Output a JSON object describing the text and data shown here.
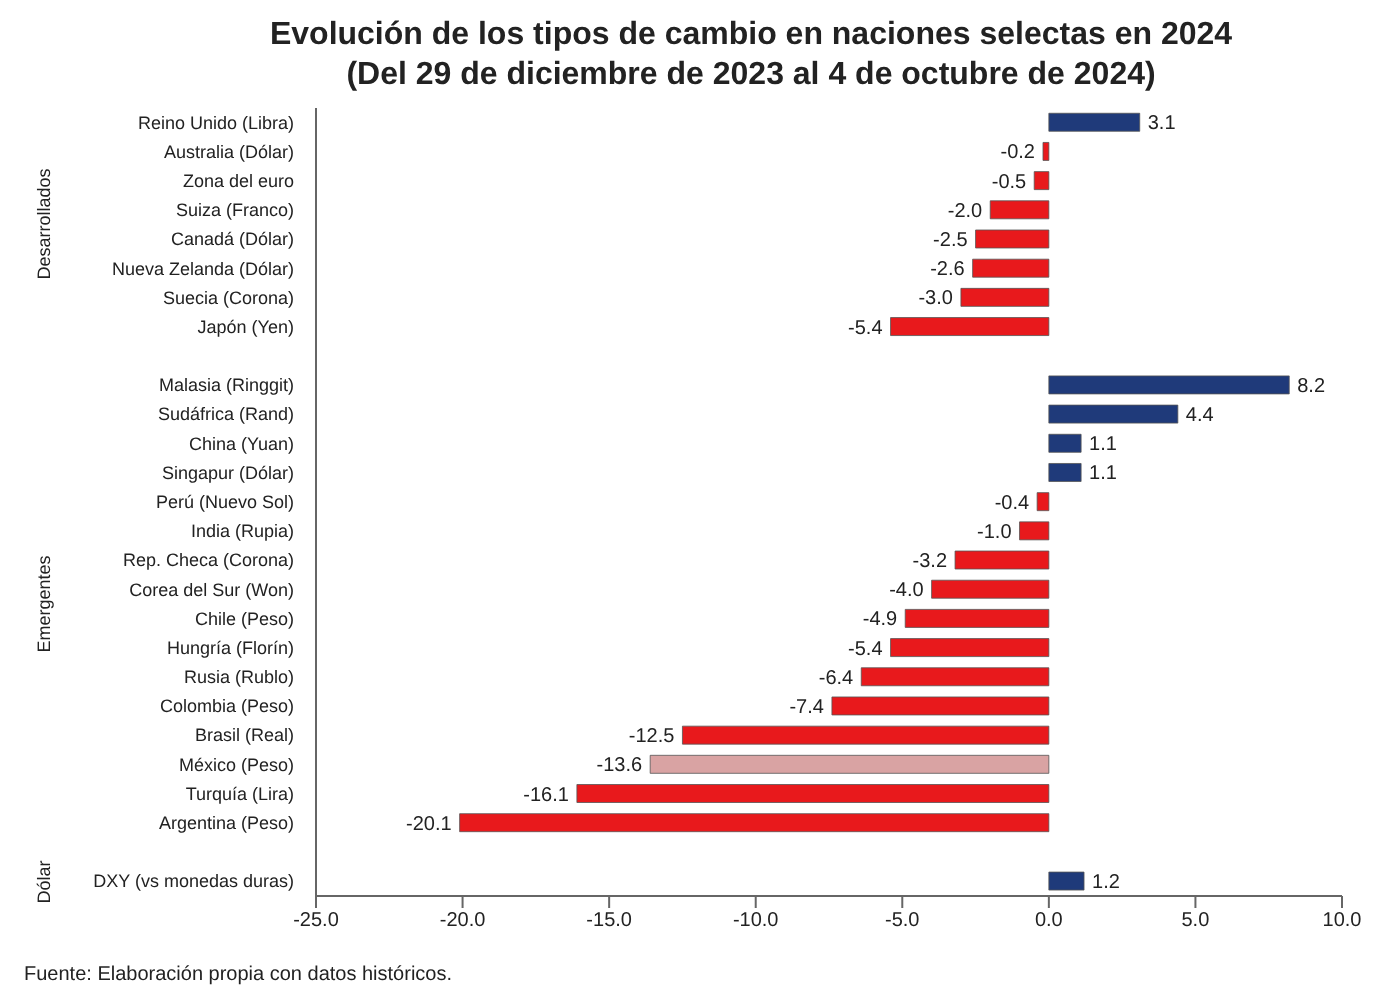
{
  "chart_data": {
    "type": "bar",
    "orientation": "horizontal",
    "title": "Evolución de los tipos de cambio en naciones selectas en 2024",
    "subtitle": "(Del 29 de diciembre de 2023 al 4 de octubre de 2024)",
    "categories": [
      "Reino Unido (Libra)",
      "Australia (Dólar)",
      "Zona del euro",
      "Suiza (Franco)",
      "Canadá (Dólar)",
      "Nueva Zelanda (Dólar)",
      "Suecia (Corona)",
      "Japón (Yen)",
      null,
      "Malasia (Ringgit)",
      "Sudáfrica (Rand)",
      "China (Yuan)",
      "Singapur (Dólar)",
      "Perú (Nuevo Sol)",
      "India (Rupia)",
      "Rep. Checa (Corona)",
      "Corea del Sur (Won)",
      "Chile (Peso)",
      "Hungría (Florín)",
      "Rusia (Rublo)",
      "Colombia (Peso)",
      "Brasil (Real)",
      "México (Peso)",
      "Turquía (Lira)",
      "Argentina (Peso)",
      null,
      "DXY (vs monedas duras)"
    ],
    "values": [
      3.1,
      -0.2,
      -0.5,
      -2.0,
      -2.5,
      -2.6,
      -3.0,
      -5.4,
      null,
      8.2,
      4.4,
      1.1,
      1.1,
      -0.4,
      -1.0,
      -3.2,
      -4.0,
      -4.9,
      -5.4,
      -6.4,
      -7.4,
      -12.5,
      -13.6,
      -16.1,
      -20.1,
      null,
      1.2
    ],
    "colors": [
      "#1f3a7a",
      "#e8191c",
      "#e8191c",
      "#e8191c",
      "#e8191c",
      "#e8191c",
      "#e8191c",
      "#e8191c",
      null,
      "#1f3a7a",
      "#1f3a7a",
      "#1f3a7a",
      "#1f3a7a",
      "#e8191c",
      "#e8191c",
      "#e8191c",
      "#e8191c",
      "#e8191c",
      "#e8191c",
      "#e8191c",
      "#e8191c",
      "#e8191c",
      "#d9a3a3",
      "#e8191c",
      "#e8191c",
      null,
      "#1f3a7a"
    ],
    "value_labels": [
      "3.1",
      "-0.2",
      "-0.5",
      "-2.0",
      "-2.5",
      "-2.6",
      "-3.0",
      "-5.4",
      null,
      "8.2",
      "4.4",
      "1.1",
      "1.1",
      "-0.4",
      "-1.0",
      "-3.2",
      "-4.0",
      "-4.9",
      "-5.4",
      "-6.4",
      "-7.4",
      "-12.5",
      "-13.6",
      "-16.1",
      "-20.1",
      null,
      "1.2"
    ],
    "xlim": [
      -25,
      10
    ],
    "xticks": [
      {
        "value": -25,
        "label": "-25.0"
      },
      {
        "value": -20,
        "label": "-20.0"
      },
      {
        "value": -15,
        "label": "-15.0"
      },
      {
        "value": -10,
        "label": "-10.0"
      },
      {
        "value": -5,
        "label": "-5.0"
      },
      {
        "value": 0,
        "label": "0.0"
      },
      {
        "value": 5,
        "label": "5.0"
      },
      {
        "value": 10,
        "label": "10.0"
      }
    ],
    "grid": false,
    "legend": false,
    "annotations": [
      "Desarrollados",
      "Emergentes",
      "Dólar",
      "Fuente: Elaboración propia con datos históricos."
    ]
  }
}
